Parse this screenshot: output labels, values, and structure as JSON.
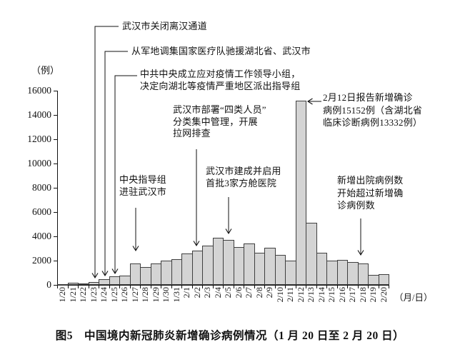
{
  "figure": {
    "caption": "图5　中国境内新冠肺炎新增确诊病例情况（1 月 20 日至 2 月 20 日）"
  },
  "chart_data": {
    "type": "bar",
    "title": "图5 中国境内新冠肺炎新增确诊病例情况（1月20日至2月20日）",
    "ylabel": "（例）",
    "xlabel": "（月/日）",
    "ylim": [
      0,
      16000
    ],
    "ytick_step": 2000,
    "grid": false,
    "legend": "none",
    "bar_fill_color": "#d4d4d4",
    "bar_border_color": "#3f3f3f",
    "categories": [
      "1/20",
      "1/21",
      "1/22",
      "1/23",
      "1/24",
      "1/25",
      "1/26",
      "1/27",
      "1/28",
      "1/29",
      "1/30",
      "1/31",
      "2/1",
      "2/2",
      "2/3",
      "2/4",
      "2/5",
      "2/6",
      "2/7",
      "2/8",
      "2/9",
      "2/10",
      "2/11",
      "2/12",
      "2/13",
      "2/14",
      "2/15",
      "2/16",
      "2/17",
      "2/18",
      "2/19",
      "2/20"
    ],
    "values": [
      77,
      149,
      131,
      259,
      444,
      688,
      769,
      1771,
      1459,
      1737,
      1982,
      2102,
      2590,
      2829,
      3235,
      3887,
      3694,
      3143,
      3399,
      2656,
      3062,
      2478,
      2015,
      15152,
      5090,
      2641,
      2009,
      2048,
      1886,
      1749,
      820,
      889
    ]
  },
  "annotations": [
    {
      "text": "武汉市关闭离汉通道",
      "points_to": "1/23"
    },
    {
      "text": "从军地调集国家医疗队驰援湖北省、武汉市",
      "points_to": "1/24"
    },
    {
      "text": "中共中央成立应对疫情工作领导小组，\n决定向湖北等疫情严重地区派出指导组",
      "points_to": "1/25"
    },
    {
      "text": "中央指导组\n进驻武汉市",
      "points_to": "1/27"
    },
    {
      "text": "武汉市部署“四类人员”\n分类集中管理，开展\n拉网排查",
      "points_to": "2/2"
    },
    {
      "text": "武汉市建成并启用\n首批3家方舱医院",
      "points_to": "2/5"
    },
    {
      "text": "2月12日报告新增确诊\n病例15152例（含湖北省\n临床诊断病例13332例）",
      "points_to": "2/12"
    },
    {
      "text": "新增出院病例数\n开始超过新增确\n诊病例数",
      "points_to": "2/18"
    }
  ]
}
